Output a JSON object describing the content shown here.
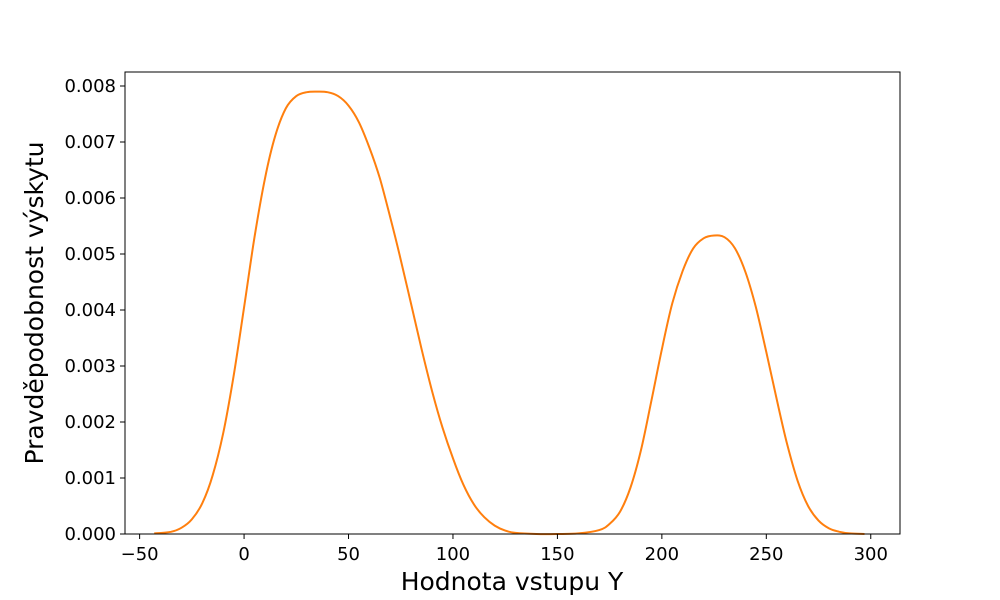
{
  "chart_data": {
    "type": "line",
    "title": "",
    "xlabel": "Hodnota vstupu Y",
    "ylabel": "Pravděpodobnost výskytu",
    "xlim": [
      -57,
      314
    ],
    "ylim": [
      0,
      0.00825
    ],
    "x_ticks": [
      -50,
      0,
      50,
      100,
      150,
      200,
      250,
      300
    ],
    "x_tick_labels": [
      "−50",
      "0",
      "50",
      "100",
      "150",
      "200",
      "250",
      "300"
    ],
    "y_ticks": [
      0,
      0.001,
      0.002,
      0.003,
      0.004,
      0.005,
      0.006,
      0.007,
      0.008
    ],
    "y_tick_labels": [
      "0.000",
      "0.001",
      "0.002",
      "0.003",
      "0.004",
      "0.005",
      "0.006",
      "0.007",
      "0.008"
    ],
    "grid": false,
    "series": [
      {
        "color": "#ff7f0e",
        "x": [
          -43,
          -35,
          -30,
          -25,
          -20,
          -15,
          -10,
          -5,
          0,
          5,
          10,
          15,
          20,
          25,
          30,
          35,
          40,
          45,
          50,
          55,
          60,
          65,
          70,
          75,
          80,
          85,
          90,
          95,
          100,
          105,
          110,
          115,
          120,
          125,
          130,
          140,
          150,
          160,
          170,
          175,
          180,
          185,
          190,
          195,
          200,
          205,
          210,
          215,
          220,
          225,
          230,
          235,
          240,
          245,
          250,
          255,
          260,
          265,
          270,
          275,
          280,
          285,
          290,
          297
        ],
        "y": [
          1e-05,
          4e-05,
          0.00011,
          0.00026,
          0.00055,
          0.00105,
          0.0018,
          0.00282,
          0.00405,
          0.0053,
          0.00635,
          0.00712,
          0.0076,
          0.00782,
          0.00789,
          0.0079,
          0.00789,
          0.00782,
          0.00765,
          0.00735,
          0.0069,
          0.00635,
          0.00565,
          0.0049,
          0.0041,
          0.0033,
          0.00255,
          0.0019,
          0.00135,
          0.00088,
          0.00053,
          0.0003,
          0.00015,
          6e-05,
          2e-05,
          0.0,
          0.0,
          1e-05,
          7e-05,
          0.00018,
          0.0004,
          0.00083,
          0.0015,
          0.00238,
          0.0033,
          0.00412,
          0.0047,
          0.0051,
          0.00528,
          0.00533,
          0.0053,
          0.0051,
          0.00468,
          0.00405,
          0.00325,
          0.0024,
          0.0016,
          0.00095,
          0.0005,
          0.00024,
          0.0001,
          4e-05,
          1e-05,
          0.0
        ]
      }
    ]
  }
}
